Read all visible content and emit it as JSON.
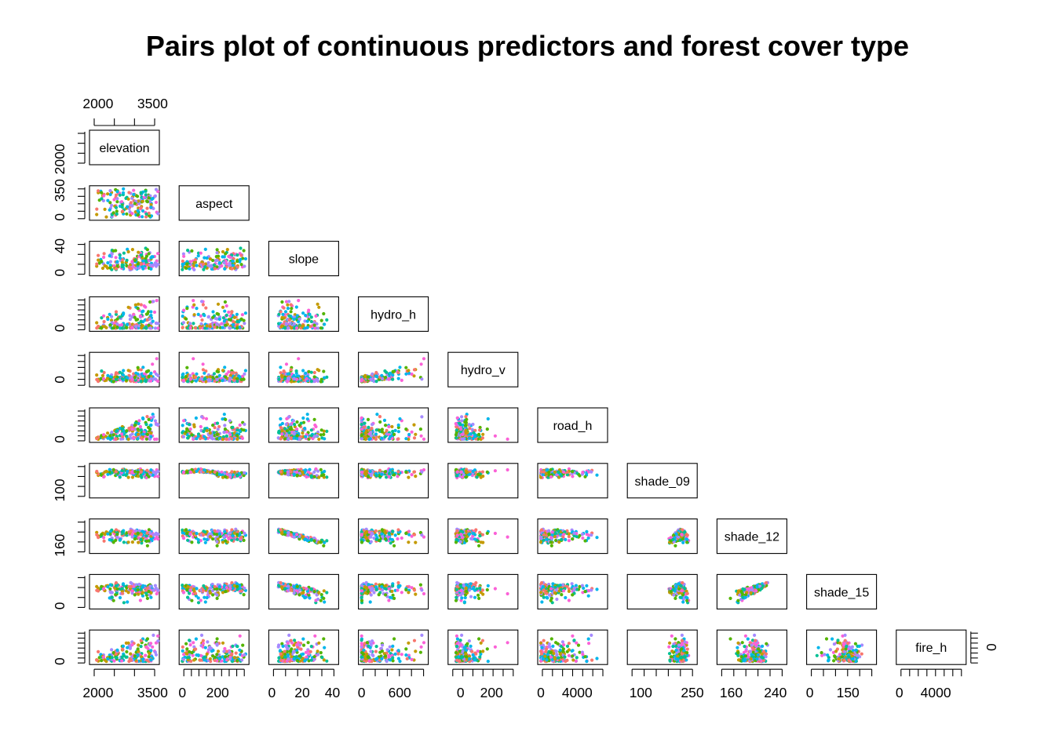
{
  "chart_data": {
    "type": "scatter",
    "title": "Pairs plot of continuous predictors and forest cover type",
    "variables": [
      {
        "label": "elevation",
        "range": [
          1850,
          3600
        ]
      },
      {
        "label": "aspect",
        "range": [
          0,
          360
        ]
      },
      {
        "label": "slope",
        "range": [
          0,
          42
        ]
      },
      {
        "label": "hydro_h",
        "range": [
          0,
          1000
        ]
      },
      {
        "label": "hydro_v",
        "range": [
          -60,
          350
        ]
      },
      {
        "label": "road_h",
        "range": [
          0,
          7000
        ]
      },
      {
        "label": "shade_09",
        "range": [
          70,
          255
        ]
      },
      {
        "label": "shade_12",
        "range": [
          140,
          255
        ]
      },
      {
        "label": "shade_15",
        "range": [
          0,
          250
        ]
      },
      {
        "label": "fire_h",
        "range": [
          0,
          7000
        ]
      }
    ],
    "axis_ticks": {
      "top": [
        {
          "col": 0,
          "labels": [
            "2000",
            "3500"
          ],
          "values": [
            2000,
            3500
          ]
        }
      ],
      "bottom": [
        {
          "col": 0,
          "labels": [
            "2000",
            "3500"
          ],
          "values": [
            2000,
            3500
          ]
        },
        {
          "col": 1,
          "labels": [
            "0",
            "200"
          ],
          "values": [
            0,
            200
          ]
        },
        {
          "col": 2,
          "labels": [
            "0",
            "20",
            "40"
          ],
          "values": [
            0,
            20,
            40
          ]
        },
        {
          "col": 3,
          "labels": [
            "0",
            "600"
          ],
          "values": [
            0,
            600
          ]
        },
        {
          "col": 4,
          "labels": [
            "0",
            "200"
          ],
          "values": [
            0,
            200
          ]
        },
        {
          "col": 5,
          "labels": [
            "0",
            "4000"
          ],
          "values": [
            0,
            4000
          ]
        },
        {
          "col": 6,
          "labels": [
            "100",
            "250"
          ],
          "values": [
            100,
            250
          ]
        },
        {
          "col": 7,
          "labels": [
            "160",
            "240"
          ],
          "values": [
            160,
            240
          ]
        },
        {
          "col": 8,
          "labels": [
            "0",
            "150"
          ],
          "values": [
            0,
            150
          ]
        },
        {
          "col": 9,
          "labels": [
            "0",
            "4000"
          ],
          "values": [
            0,
            4000
          ]
        }
      ],
      "left": [
        {
          "row": 0,
          "labels": [
            "2000"
          ],
          "values": [
            2000
          ]
        },
        {
          "row": 1,
          "labels": [
            "0",
            "350"
          ],
          "values": [
            0,
            350
          ]
        },
        {
          "row": 2,
          "labels": [
            "0",
            "40"
          ],
          "values": [
            0,
            40
          ]
        },
        {
          "row": 3,
          "labels": [
            "0"
          ],
          "values": [
            0
          ]
        },
        {
          "row": 4,
          "labels": [
            "0"
          ],
          "values": [
            0
          ]
        },
        {
          "row": 5,
          "labels": [
            "0"
          ],
          "values": [
            0
          ]
        },
        {
          "row": 6,
          "labels": [
            "100"
          ],
          "values": [
            100
          ]
        },
        {
          "row": 7,
          "labels": [
            "160"
          ],
          "values": [
            160
          ]
        },
        {
          "row": 8,
          "labels": [
            "0"
          ],
          "values": [
            0
          ]
        },
        {
          "row": 9,
          "labels": [
            "0"
          ],
          "values": [
            0
          ]
        }
      ],
      "right": [
        {
          "row": 9,
          "labels": [
            "0"
          ],
          "values": [
            0
          ]
        }
      ]
    },
    "class_colors": [
      "#F8766D",
      "#C49A00",
      "#53B400",
      "#00C094",
      "#00B6EB",
      "#A58AFF",
      "#FB61D7"
    ],
    "grid": false,
    "legend": "none",
    "point_count": 160
  }
}
